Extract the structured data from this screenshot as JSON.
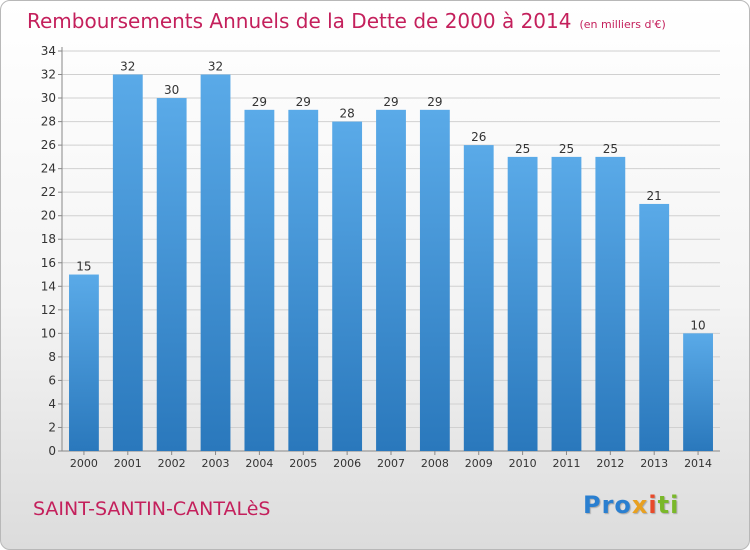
{
  "title": "Remboursements Annuels de la Dette de 2000 à 2014",
  "unit": "(en milliers d'€)",
  "commune": "SAINT-SANTIN-CANTALèS",
  "logo": {
    "p1": "Pro",
    "p2": "x",
    "p3": "i",
    "p4": "ti"
  },
  "colors": {
    "bar_top": "#5aaae8",
    "bar_bottom": "#2a78bc",
    "title": "#c4205c"
  },
  "chart_data": {
    "type": "bar",
    "title": "Remboursements Annuels de la Dette de 2000 à 2014",
    "xlabel": "",
    "ylabel": "",
    "categories": [
      "2000",
      "2001",
      "2002",
      "2003",
      "2004",
      "2005",
      "2006",
      "2007",
      "2008",
      "2009",
      "2010",
      "2011",
      "2012",
      "2013",
      "2014"
    ],
    "values": [
      15,
      32,
      30,
      32,
      29,
      29,
      28,
      29,
      29,
      26,
      25,
      25,
      25,
      21,
      10
    ],
    "ylim": [
      0,
      34
    ],
    "yticks": [
      0,
      2,
      4,
      6,
      8,
      10,
      12,
      14,
      16,
      18,
      20,
      22,
      24,
      26,
      28,
      30,
      32,
      34
    ],
    "grid": true,
    "data_labels": true
  }
}
